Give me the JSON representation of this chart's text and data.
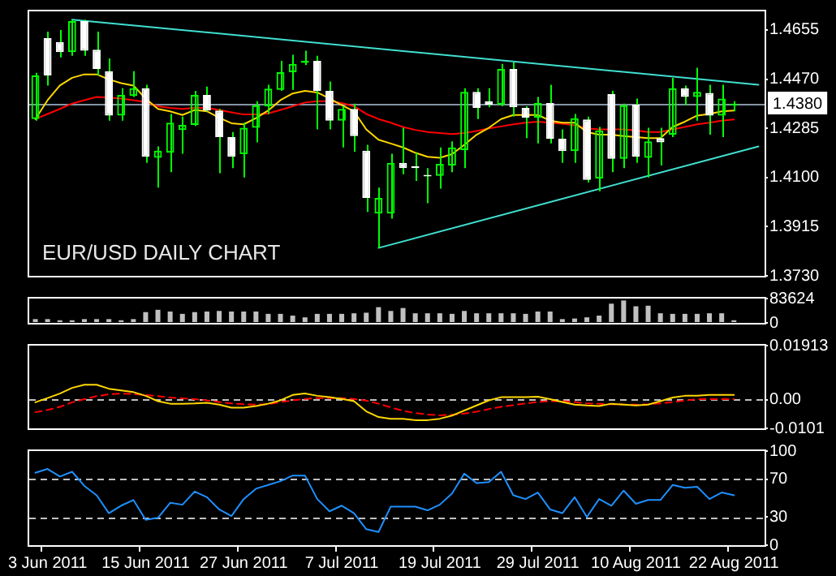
{
  "chart_data": [
    {
      "type": "candlestick",
      "title": "EUR/USD DAILY CHART",
      "categories": [
        null,
        null,
        null,
        null,
        null,
        null,
        null,
        null,
        null,
        null,
        null,
        null,
        null,
        null,
        null,
        null,
        null,
        null,
        null,
        null,
        null,
        null,
        null,
        null,
        null,
        null,
        null,
        null,
        null,
        null,
        null,
        null,
        null,
        null,
        null,
        null,
        null,
        null,
        null,
        null,
        null,
        null,
        null,
        null,
        null,
        null,
        null,
        null,
        null,
        null,
        null,
        null,
        null,
        null,
        null,
        null,
        null,
        null,
        null,
        null
      ],
      "ohlc": [
        [
          1.432,
          1.4494,
          1.4314,
          1.4484
        ],
        [
          1.4624,
          1.4649,
          1.4446,
          1.4484
        ],
        [
          1.461,
          1.4655,
          1.4552,
          1.4572
        ],
        [
          1.4572,
          1.4694,
          1.4558,
          1.4688
        ],
        [
          1.4688,
          1.4694,
          1.4558,
          1.4577
        ],
        [
          1.4581,
          1.4649,
          1.4484,
          1.4508
        ],
        [
          1.45,
          1.4548,
          1.4314,
          1.4333
        ],
        [
          1.4333,
          1.4436,
          1.4314,
          1.4411
        ],
        [
          1.4407,
          1.45,
          1.4403,
          1.4436
        ],
        [
          1.4436,
          1.4449,
          1.4155,
          1.4178
        ],
        [
          1.4174,
          1.4217,
          1.4062,
          1.4201
        ],
        [
          1.4193,
          1.4339,
          1.412,
          1.4306
        ],
        [
          1.4279,
          1.4329,
          1.4189,
          1.4298
        ],
        [
          1.4298,
          1.4426,
          1.4294,
          1.4411
        ],
        [
          1.4411,
          1.4442,
          1.4349,
          1.4352
        ],
        [
          1.4352,
          1.4358,
          1.4116,
          1.4252
        ],
        [
          1.4252,
          1.4271,
          1.4135,
          1.4178
        ],
        [
          1.4188,
          1.4306,
          1.41,
          1.4287
        ],
        [
          1.4287,
          1.4387,
          1.4232,
          1.4372
        ],
        [
          1.4368,
          1.4449,
          1.4339,
          1.4434
        ],
        [
          1.443,
          1.4539,
          1.4426,
          1.4496
        ],
        [
          1.4496,
          1.4562,
          1.443,
          1.4527
        ],
        [
          1.4531,
          1.4577,
          1.4523,
          1.4539
        ],
        [
          1.4539,
          1.4558,
          1.4281,
          1.4426
        ],
        [
          1.4426,
          1.4461,
          1.4281,
          1.4314
        ],
        [
          1.4314,
          1.4368,
          1.4213,
          1.4358
        ],
        [
          1.4358,
          1.4378,
          1.4197,
          1.4256
        ],
        [
          1.4201,
          1.4223,
          1.397,
          1.4023
        ],
        [
          1.3964,
          1.4062,
          1.3835,
          1.4023
        ],
        [
          1.3964,
          1.4189,
          1.3945,
          1.4155
        ],
        [
          1.4155,
          1.4287,
          1.4112,
          1.4135
        ],
        [
          1.4143,
          1.4193,
          1.4087,
          1.4135
        ],
        [
          1.411,
          1.4135,
          1.4003,
          1.4104
        ],
        [
          1.4106,
          1.4213,
          1.4058,
          1.4151
        ],
        [
          1.4145,
          1.4236,
          1.412,
          1.4213
        ],
        [
          1.4203,
          1.4436,
          1.4135,
          1.4422
        ],
        [
          1.4422,
          1.4436,
          1.432,
          1.4362
        ],
        [
          1.4387,
          1.4436,
          1.4364,
          1.4374
        ],
        [
          1.4374,
          1.4527,
          1.4368,
          1.4508
        ],
        [
          1.4508,
          1.4533,
          1.4329,
          1.4364
        ],
        [
          1.4362,
          1.4368,
          1.4248,
          1.4325
        ],
        [
          1.4325,
          1.4403,
          1.4228,
          1.438
        ],
        [
          1.438,
          1.4449,
          1.4228,
          1.4246
        ],
        [
          1.4246,
          1.4281,
          1.4155,
          1.4199
        ],
        [
          1.4199,
          1.4339,
          1.4155,
          1.4323
        ],
        [
          1.4318,
          1.4329,
          1.4081,
          1.4091
        ],
        [
          1.4096,
          1.429,
          1.4048,
          1.4277
        ],
        [
          1.4414,
          1.4426,
          1.412,
          1.417
        ],
        [
          1.417,
          1.4378,
          1.4135,
          1.4372
        ],
        [
          1.4374,
          1.4397,
          1.4155,
          1.4178
        ],
        [
          1.4174,
          1.4287,
          1.41,
          1.4236
        ],
        [
          1.4248,
          1.4287,
          1.4145,
          1.4232
        ],
        [
          1.4261,
          1.4475,
          1.4252,
          1.4436
        ],
        [
          1.4436,
          1.4446,
          1.4372,
          1.4403
        ],
        [
          1.4403,
          1.4513,
          1.4314,
          1.4422
        ],
        [
          1.4418,
          1.4449,
          1.4261,
          1.4333
        ],
        [
          1.4333,
          1.4449,
          1.4252,
          1.4397
        ],
        [
          1.4372,
          1.4387,
          1.4349,
          1.4378
        ],
        null,
        null
      ],
      "color": "#00ff00",
      "colors": [
        "#00ff00",
        "#ffffff",
        "#ffffff",
        "#00ff00",
        "#ffffff",
        "#ffffff",
        "#ffffff",
        "#00ff00",
        "#00ff00",
        "#ffffff",
        "#00ff00",
        "#00ff00",
        "#00ff00",
        "#00ff00",
        "#ffffff",
        "#ffffff",
        "#ffffff",
        "#00ff00",
        "#00ff00",
        "#00ff00",
        "#00ff00",
        "#00ff00",
        "#00ff00",
        "#ffffff",
        "#ffffff",
        "#00ff00",
        "#ffffff",
        "#ffffff",
        "#00ff00",
        "#00ff00",
        "#ffffff",
        "#ffffff",
        "#ffffff",
        "#00ff00",
        "#00ff00",
        "#00ff00",
        "#ffffff",
        "#ffffff",
        "#00ff00",
        "#ffffff",
        "#ffffff",
        "#00ff00",
        "#ffffff",
        "#ffffff",
        "#00ff00",
        "#ffffff",
        "#00ff00",
        "#ffffff",
        "#00ff00",
        "#ffffff",
        "#00ff00",
        "#ffffff",
        "#00ff00",
        "#ffffff",
        "#00ff00",
        "#ffffff",
        "#00ff00",
        "#00ff00",
        null,
        null
      ],
      "series": [
        {
          "type": "line",
          "color": "#ffd700",
          "values": [
            1.432,
            1.4391,
            1.4446,
            1.4475,
            1.4488,
            1.4488,
            1.4469,
            1.4455,
            1.4446,
            1.4397,
            1.4358,
            1.4349,
            1.4335,
            1.4354,
            1.4349,
            1.4325,
            1.4304,
            1.43,
            1.4323,
            1.4352,
            1.4391,
            1.4416,
            1.4426,
            1.442,
            1.4397,
            1.4372,
            1.4349,
            1.4281,
            1.4242,
            1.4228,
            1.4213,
            1.4193,
            1.4178,
            1.4174,
            1.4188,
            1.4223,
            1.4261,
            1.4287,
            1.432,
            1.4335,
            1.4335,
            1.4335,
            1.4314,
            1.4306,
            1.4306,
            1.4271,
            1.4261,
            1.4261,
            1.4256,
            1.4252,
            1.4248,
            1.4248,
            1.429,
            1.431,
            1.4333,
            1.4339,
            1.4349,
            1.4352,
            null,
            null
          ]
        },
        {
          "type": "line",
          "color": "#ff0000",
          "values": [
            1.432,
            1.4339,
            1.4358,
            1.4378,
            1.4391,
            1.4403,
            1.4401,
            1.4397,
            1.4391,
            1.4384,
            1.4368,
            1.4362,
            1.4358,
            1.4362,
            1.4362,
            1.4354,
            1.4345,
            1.4337,
            1.4337,
            1.4341,
            1.4354,
            1.4368,
            1.4382,
            1.4387,
            1.4387,
            1.438,
            1.4368,
            1.4339,
            1.432,
            1.4306,
            1.429,
            1.4279,
            1.4271,
            1.4267,
            1.4263,
            1.4267,
            1.4275,
            1.4285,
            1.4292,
            1.43,
            1.4306,
            1.431,
            1.4306,
            1.4302,
            1.4296,
            1.4285,
            1.4281,
            1.4281,
            1.4281,
            1.4277,
            1.4271,
            1.4271,
            1.4281,
            1.429,
            1.43,
            1.4306,
            1.4314,
            1.4318,
            null,
            null
          ]
        },
        {
          "type": "line",
          "color": "#40e0d0",
          "values": [
            null,
            null,
            null,
            1.4694,
            null,
            null,
            null,
            null,
            null,
            null,
            null,
            null,
            null,
            null,
            null,
            null,
            null,
            null,
            null,
            null,
            null,
            null,
            null,
            null,
            null,
            null,
            null,
            null,
            null,
            null,
            null,
            null,
            null,
            null,
            null,
            null,
            null,
            null,
            null,
            null,
            null,
            null,
            null,
            null,
            null,
            null,
            null,
            null,
            null,
            null,
            null,
            null,
            null,
            null,
            null,
            null,
            null,
            null,
            null,
            1.4449
          ]
        },
        {
          "type": "line",
          "color": "#40e0d0",
          "values": [
            null,
            null,
            null,
            null,
            null,
            null,
            null,
            null,
            null,
            null,
            null,
            null,
            null,
            null,
            null,
            null,
            null,
            null,
            null,
            null,
            null,
            null,
            null,
            null,
            null,
            null,
            null,
            null,
            1.3835,
            null,
            null,
            null,
            null,
            null,
            null,
            null,
            null,
            null,
            null,
            null,
            null,
            null,
            null,
            null,
            null,
            null,
            null,
            null,
            null,
            null,
            null,
            null,
            null,
            null,
            null,
            null,
            null,
            null,
            null,
            1.4217
          ]
        }
      ],
      "ylim": [
        1.373,
        1.4725
      ],
      "yticks": [
        {
          "value": 1.373,
          "label": "1.3730"
        },
        1.3915,
        {
          "value": 1.41,
          "label": "1.4100"
        },
        1.4285,
        {
          "value": 1.447,
          "label": "1.4470"
        },
        1.4655
      ],
      "ref_lines": [
        {
          "axis": "y",
          "value": 1.438,
          "label": "1.4380",
          "color": "#8494a4"
        }
      ],
      "marker": "none",
      "tick_labels": "y"
    },
    {
      "type": "bar",
      "categories": [
        null,
        null,
        null,
        null,
        null,
        null,
        null,
        null,
        null,
        null,
        null,
        null,
        null,
        null,
        null,
        null,
        null,
        null,
        null,
        null,
        null,
        null,
        null,
        null,
        null,
        null,
        null,
        null,
        null,
        null,
        null,
        null,
        null,
        null,
        null,
        null,
        null,
        null,
        null,
        null,
        null,
        null,
        null,
        null,
        null,
        null,
        null,
        null,
        null,
        null,
        null,
        null,
        null,
        null,
        null,
        null,
        null,
        null,
        null,
        null
      ],
      "values": [
        13000,
        13000,
        9000,
        9000,
        13000,
        13000,
        13000,
        9000,
        13000,
        37000,
        45000,
        39000,
        31000,
        37000,
        39000,
        41000,
        39000,
        39000,
        39000,
        31000,
        31000,
        25000,
        19000,
        31000,
        31000,
        31000,
        33000,
        35000,
        54000,
        41000,
        51000,
        33000,
        33000,
        33000,
        31000,
        41000,
        33000,
        33000,
        33000,
        33000,
        31000,
        39000,
        39000,
        13000,
        15000,
        19000,
        25000,
        66000,
        77000,
        57000,
        59000,
        33000,
        31000,
        31000,
        31000,
        33000,
        33000,
        9000,
        null,
        null
      ],
      "color": "#c0c0c0",
      "ylim": [
        0,
        83624
      ],
      "yticks": [
        0,
        83624
      ],
      "tick_labels": "y"
    },
    {
      "type": "line",
      "categories": [
        null,
        null,
        null,
        null,
        null,
        null,
        null,
        null,
        null,
        null,
        null,
        null,
        null,
        null,
        null,
        null,
        null,
        null,
        null,
        null,
        null,
        null,
        null,
        null,
        null,
        null,
        null,
        null,
        null,
        null,
        null,
        null,
        null,
        null,
        null,
        null,
        null,
        null,
        null,
        null,
        null,
        null,
        null,
        null,
        null,
        null,
        null,
        null,
        null,
        null,
        null,
        null,
        null,
        null,
        null,
        null,
        null,
        null,
        null,
        null
      ],
      "series": [
        {
          "color": "#ffd700",
          "values": [
            -0.0009,
            0.0006,
            0.0022,
            0.0042,
            0.0053,
            0.0053,
            0.0039,
            0.0033,
            0.0027,
            0.0014,
            -0.0005,
            -0.0014,
            -0.0014,
            -0.0013,
            -0.0011,
            -0.0017,
            -0.0028,
            -0.0028,
            -0.0022,
            -0.0014,
            -0.0002,
            0.0017,
            0.0022,
            0.0014,
            0.0009,
            0.0003,
            -0.0005,
            -0.0041,
            -0.0061,
            -0.0067,
            -0.0067,
            -0.0072,
            -0.0072,
            -0.0067,
            -0.0056,
            -0.0038,
            -0.002,
            -0.0002,
            0.0009,
            0.0009,
            0.0009,
            0.0011,
            0.0002,
            -0.0008,
            -0.0017,
            -0.002,
            -0.0022,
            -0.0014,
            -0.0017,
            -0.002,
            -0.0017,
            -0.0005,
            0.0008,
            0.0014,
            0.0014,
            0.0017,
            0.0017,
            0.0017,
            null,
            null
          ]
        },
        {
          "color": "#ff0000",
          "line_style": "dashed",
          "values": [
            -0.0044,
            -0.0036,
            -0.0025,
            -0.0009,
            0.0002,
            0.0013,
            0.0019,
            0.0022,
            0.002,
            0.0017,
            0.0013,
            0.0008,
            0.0005,
            0.0002,
            -0.0002,
            -0.0008,
            -0.0013,
            -0.0016,
            -0.0017,
            -0.0016,
            -0.0008,
            -0.0002,
            0.0003,
            0.0006,
            0.0006,
            0.0006,
            0.0003,
            -0.0003,
            -0.0014,
            -0.0027,
            -0.0039,
            -0.0047,
            -0.0052,
            -0.0055,
            -0.0053,
            -0.0049,
            -0.0042,
            -0.0033,
            -0.0025,
            -0.0019,
            -0.0013,
            -0.0008,
            -0.0005,
            -0.0005,
            -0.0008,
            -0.0013,
            -0.0014,
            -0.0016,
            -0.0017,
            -0.0017,
            -0.0016,
            -0.0013,
            -0.0008,
            -0.0003,
            0.0002,
            0.0002,
            0.0002,
            0.0002,
            null,
            null
          ]
        }
      ],
      "ylim": [
        -0.0101,
        0.01913
      ],
      "yticks": [
        -0.0101,
        {
          "value": 0,
          "label": "0.00"
        },
        0.01913
      ],
      "ref_lines": [
        {
          "axis": "y",
          "value": 0,
          "color": "#c0c0c0",
          "line_style": "dashed"
        }
      ],
      "marker": "none",
      "tick_labels": "y"
    },
    {
      "type": "line",
      "categories": [
        null,
        "3 Jun 2011",
        null,
        null,
        null,
        null,
        null,
        null,
        null,
        "15 Jun 2011",
        null,
        null,
        null,
        null,
        null,
        null,
        null,
        "27 Jun 2011",
        null,
        null,
        null,
        null,
        null,
        null,
        null,
        "7 Jul 2011",
        null,
        null,
        null,
        null,
        null,
        null,
        null,
        "19 Jul 2011",
        null,
        null,
        null,
        null,
        null,
        null,
        null,
        "29 Jul 2011",
        null,
        null,
        null,
        null,
        null,
        null,
        null,
        "10 Aug 2011",
        null,
        null,
        null,
        null,
        null,
        null,
        null,
        "22 Aug 2011",
        null,
        null
      ],
      "series": [
        {
          "color": "#1e90ff",
          "values": [
            77,
            81,
            73,
            78,
            63,
            53,
            34,
            42,
            48,
            27,
            29,
            45,
            43,
            57,
            51,
            38,
            31,
            49,
            60,
            64,
            68,
            74,
            74,
            49,
            36,
            42,
            34,
            17,
            14,
            41,
            41,
            41,
            37,
            43,
            55,
            76,
            66,
            67,
            78,
            53,
            49,
            56,
            38,
            34,
            51,
            30,
            49,
            42,
            58,
            44,
            48,
            48,
            64,
            61,
            62,
            49,
            56,
            53,
            null,
            null
          ]
        }
      ],
      "ylim": [
        0,
        100
      ],
      "yticks": [
        0,
        30,
        70,
        100
      ],
      "ref_lines": [
        {
          "axis": "y",
          "value": 30,
          "color": "#c0c0c0",
          "line_style": "dashed"
        },
        {
          "axis": "y",
          "value": 70,
          "color": "#c0c0c0",
          "line_style": "dashed"
        }
      ],
      "marker": "none"
    }
  ]
}
